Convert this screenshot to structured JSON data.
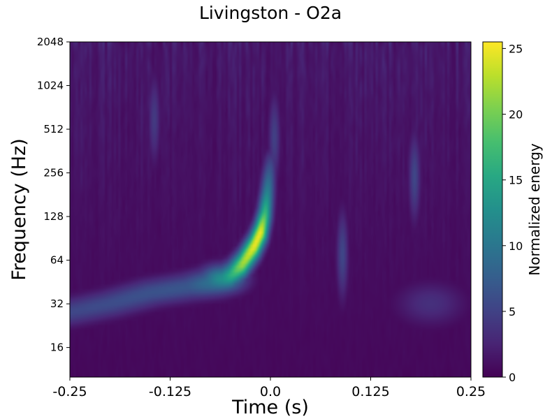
{
  "chart_data": {
    "type": "heatmap",
    "title": "Livingston - O2a",
    "xlabel": "Time (s)",
    "ylabel": "Frequency (Hz)",
    "xlim": [
      -0.25,
      0.25
    ],
    "ylim": [
      10,
      2048
    ],
    "yscale": "log2",
    "x_ticks": [
      -0.25,
      -0.125,
      0.0,
      0.125,
      0.25
    ],
    "x_tick_labels": [
      "-0.25",
      "-0.125",
      "0.0",
      "0.125",
      "0.25"
    ],
    "y_ticks": [
      16,
      32,
      64,
      128,
      256,
      512,
      1024,
      2048
    ],
    "y_tick_labels": [
      "16",
      "32",
      "64",
      "128",
      "256",
      "512",
      "1024",
      "2048"
    ],
    "colormap": "viridis",
    "colorbar": {
      "label": "Normalized energy",
      "range": [
        0,
        25.5
      ],
      "ticks": [
        0,
        5,
        10,
        15,
        20,
        25
      ],
      "tick_labels": [
        "0",
        "5",
        "10",
        "15",
        "20",
        "25"
      ]
    },
    "features": [
      {
        "kind": "chirp",
        "points": [
          [
            -0.25,
            28,
            5.5
          ],
          [
            -0.2,
            32,
            6
          ],
          [
            -0.15,
            38,
            6.5
          ],
          [
            -0.1,
            42,
            7
          ],
          [
            -0.07,
            45,
            10
          ],
          [
            -0.05,
            50,
            16
          ],
          [
            -0.035,
            60,
            22
          ],
          [
            -0.02,
            80,
            25
          ],
          [
            -0.012,
            100,
            25
          ],
          [
            -0.007,
            130,
            18
          ],
          [
            -0.004,
            180,
            12
          ],
          [
            -0.002,
            240,
            8
          ],
          [
            0.0,
            300,
            5
          ]
        ]
      },
      {
        "kind": "spike",
        "t": 0.09,
        "f": 70,
        "energy": 5.5
      },
      {
        "kind": "spike",
        "t": 0.18,
        "f": 240,
        "energy": 5.5
      },
      {
        "kind": "spike",
        "t": -0.145,
        "f": 600,
        "energy": 4.5
      },
      {
        "kind": "spike",
        "t": 0.005,
        "f": 450,
        "energy": 5
      },
      {
        "kind": "blob",
        "t": 0.2,
        "f": 32,
        "energy": 3.5
      }
    ]
  }
}
